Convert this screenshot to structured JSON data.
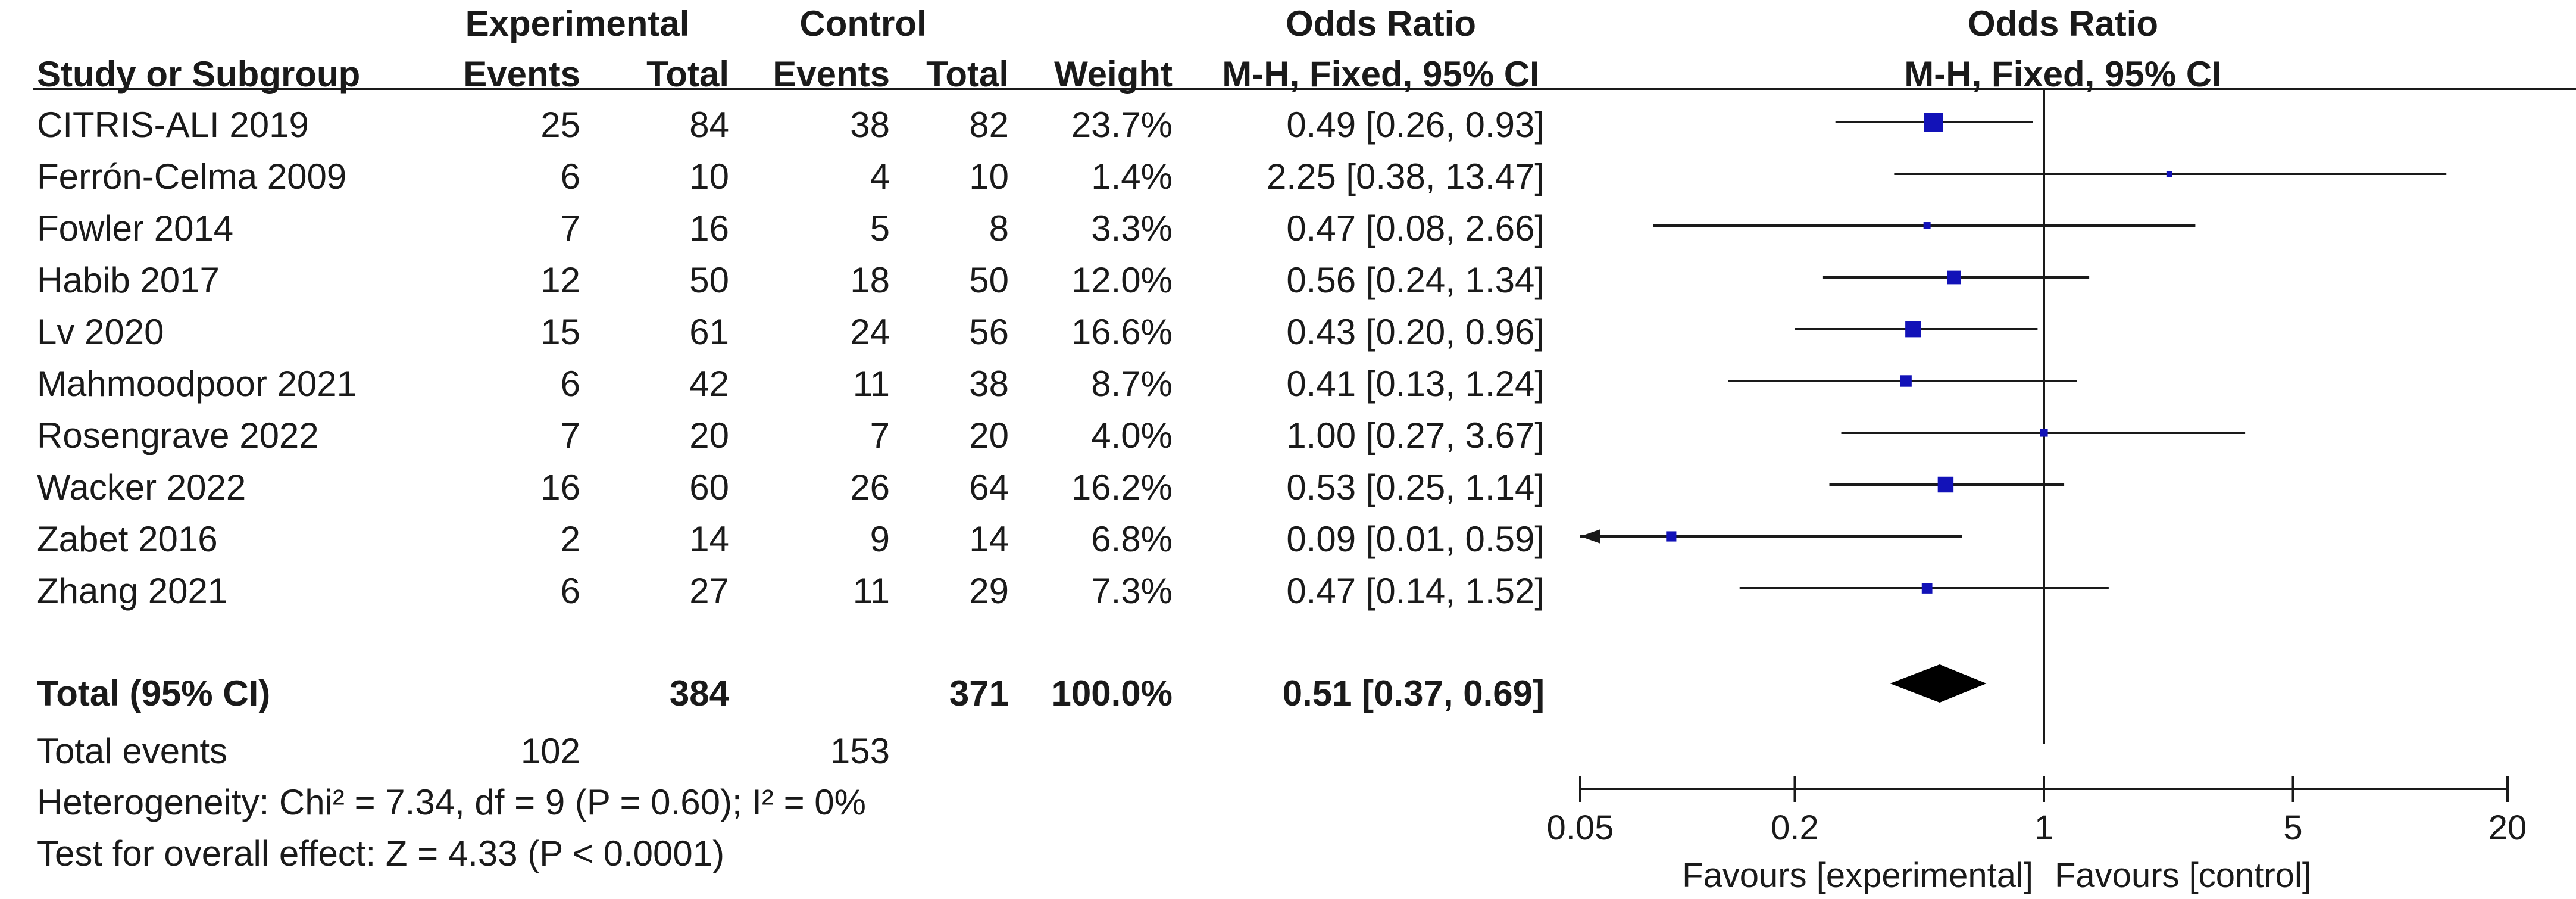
{
  "header": {
    "group_experimental": "Experimental",
    "group_control": "Control",
    "group_or_table": "Odds Ratio",
    "group_or_plot": "Odds Ratio",
    "col_study": "Study or Subgroup",
    "col_exp_events": "Events",
    "col_exp_total": "Total",
    "col_ctl_events": "Events",
    "col_ctl_total": "Total",
    "col_weight": "Weight",
    "col_or": "M-H, Fixed, 95% CI",
    "col_or_plot": "M-H, Fixed, 95% CI"
  },
  "studies": [
    {
      "name": "CITRIS-ALI 2019",
      "exp_events": "25",
      "exp_total": "84",
      "ctl_events": "38",
      "ctl_total": "82",
      "weight": "23.7%",
      "or_text": "0.49 [0.26, 0.93]"
    },
    {
      "name": "Ferrón-Celma 2009",
      "exp_events": "6",
      "exp_total": "10",
      "ctl_events": "4",
      "ctl_total": "10",
      "weight": "1.4%",
      "or_text": "2.25 [0.38, 13.47]"
    },
    {
      "name": "Fowler 2014",
      "exp_events": "7",
      "exp_total": "16",
      "ctl_events": "5",
      "ctl_total": "8",
      "weight": "3.3%",
      "or_text": "0.47 [0.08, 2.66]"
    },
    {
      "name": "Habib 2017",
      "exp_events": "12",
      "exp_total": "50",
      "ctl_events": "18",
      "ctl_total": "50",
      "weight": "12.0%",
      "or_text": "0.56 [0.24, 1.34]"
    },
    {
      "name": "Lv 2020",
      "exp_events": "15",
      "exp_total": "61",
      "ctl_events": "24",
      "ctl_total": "56",
      "weight": "16.6%",
      "or_text": "0.43 [0.20, 0.96]"
    },
    {
      "name": "Mahmoodpoor 2021",
      "exp_events": "6",
      "exp_total": "42",
      "ctl_events": "11",
      "ctl_total": "38",
      "weight": "8.7%",
      "or_text": "0.41 [0.13, 1.24]"
    },
    {
      "name": "Rosengrave 2022",
      "exp_events": "7",
      "exp_total": "20",
      "ctl_events": "7",
      "ctl_total": "20",
      "weight": "4.0%",
      "or_text": "1.00 [0.27, 3.67]"
    },
    {
      "name": "Wacker 2022",
      "exp_events": "16",
      "exp_total": "60",
      "ctl_events": "26",
      "ctl_total": "64",
      "weight": "16.2%",
      "or_text": "0.53 [0.25, 1.14]"
    },
    {
      "name": "Zabet 2016",
      "exp_events": "2",
      "exp_total": "14",
      "ctl_events": "9",
      "ctl_total": "14",
      "weight": "6.8%",
      "or_text": "0.09 [0.01, 0.59]"
    },
    {
      "name": "Zhang 2021",
      "exp_events": "6",
      "exp_total": "27",
      "ctl_events": "11",
      "ctl_total": "29",
      "weight": "7.3%",
      "or_text": "0.47 [0.14, 1.52]"
    }
  ],
  "total": {
    "label": "Total (95% CI)",
    "exp_total": "384",
    "ctl_total": "371",
    "weight": "100.0%",
    "or_text": "0.51 [0.37, 0.69]"
  },
  "total_events": {
    "label": "Total events",
    "exp": "102",
    "ctl": "153"
  },
  "heterogeneity": "Heterogeneity: Chi² = 7.34, df = 9 (P = 0.60); I² = 0%",
  "overall_effect": "Test for overall effect: Z = 4.33 (P < 0.0001)",
  "colors": {
    "marker": "#1212b8",
    "line": "#1a1a1a",
    "diamond": "#000000"
  },
  "chart_data": {
    "type": "forest",
    "title": "Odds Ratio",
    "subtitle": "M-H, Fixed, 95% CI",
    "x_scale": "log",
    "xlim": [
      0.05,
      20
    ],
    "ticks": [
      0.05,
      0.2,
      1,
      5,
      20
    ],
    "tick_labels": [
      "0.05",
      "0.2",
      "1",
      "5",
      "20"
    ],
    "xlabel_left": "Favours [experimental]",
    "xlabel_right": "Favours [control]",
    "reference": 1,
    "points": [
      {
        "study": "CITRIS-ALI 2019",
        "or": 0.49,
        "lo": 0.26,
        "hi": 0.93,
        "weight": 23.7
      },
      {
        "study": "Ferrón-Celma 2009",
        "or": 2.25,
        "lo": 0.38,
        "hi": 13.47,
        "weight": 1.4
      },
      {
        "study": "Fowler 2014",
        "or": 0.47,
        "lo": 0.08,
        "hi": 2.66,
        "weight": 3.3
      },
      {
        "study": "Habib 2017",
        "or": 0.56,
        "lo": 0.24,
        "hi": 1.34,
        "weight": 12.0
      },
      {
        "study": "Lv 2020",
        "or": 0.43,
        "lo": 0.2,
        "hi": 0.96,
        "weight": 16.6
      },
      {
        "study": "Mahmoodpoor 2021",
        "or": 0.41,
        "lo": 0.13,
        "hi": 1.24,
        "weight": 8.7
      },
      {
        "study": "Rosengrave 2022",
        "or": 1.0,
        "lo": 0.27,
        "hi": 3.67,
        "weight": 4.0
      },
      {
        "study": "Wacker 2022",
        "or": 0.53,
        "lo": 0.25,
        "hi": 1.14,
        "weight": 16.2
      },
      {
        "study": "Zabet 2016",
        "or": 0.09,
        "lo": 0.01,
        "hi": 0.59,
        "weight": 6.8
      },
      {
        "study": "Zhang 2021",
        "or": 0.47,
        "lo": 0.14,
        "hi": 1.52,
        "weight": 7.3
      }
    ],
    "pooled": {
      "or": 0.51,
      "lo": 0.37,
      "hi": 0.69
    }
  }
}
